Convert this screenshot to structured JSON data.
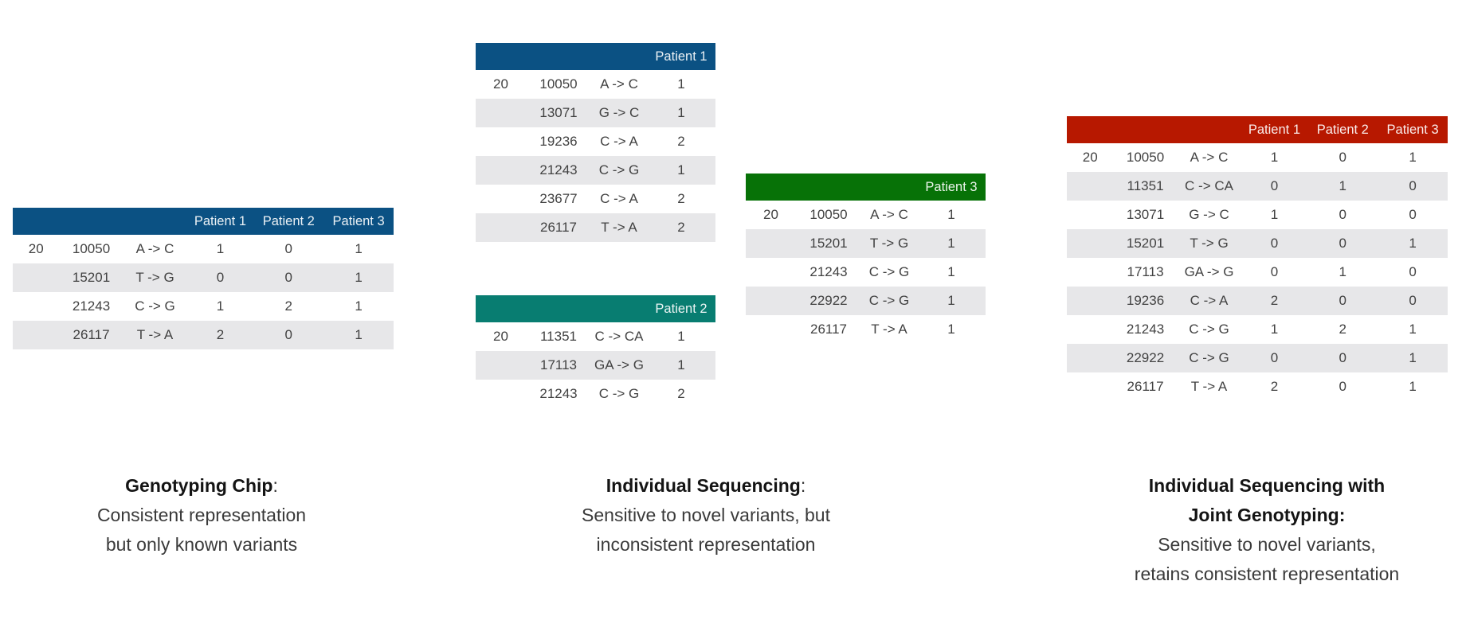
{
  "figure": {
    "tables": [
      {
        "name": "genotyping-chip-table",
        "header_color": "#0b5183",
        "headers": [
          "",
          "",
          "",
          "Patient 1",
          "Patient 2",
          "Patient 3"
        ],
        "rows": [
          [
            "20",
            "10050",
            "A -> C",
            "1",
            "0",
            "1"
          ],
          [
            "",
            "15201",
            "T -> G",
            "0",
            "0",
            "1"
          ],
          [
            "",
            "21243",
            "C -> G",
            "1",
            "2",
            "1"
          ],
          [
            "",
            "26117",
            "T -> A",
            "2",
            "0",
            "1"
          ]
        ]
      },
      {
        "name": "patient-1-sequencing-table",
        "header_color": "#0b5183",
        "headers": [
          "",
          "",
          "",
          "Patient 1"
        ],
        "rows": [
          [
            "20",
            "10050",
            "A -> C",
            "1"
          ],
          [
            "",
            "13071",
            "G -> C",
            "1"
          ],
          [
            "",
            "19236",
            "C -> A",
            "2"
          ],
          [
            "",
            "21243",
            "C -> G",
            "1"
          ],
          [
            "",
            "23677",
            "C -> A",
            "2"
          ],
          [
            "",
            "26117",
            "T -> A",
            "2"
          ]
        ]
      },
      {
        "name": "patient-2-sequencing-table",
        "header_color": "#087d71",
        "headers": [
          "",
          "",
          "",
          "Patient 2"
        ],
        "rows": [
          [
            "20",
            "11351",
            "C -> CA",
            "1"
          ],
          [
            "",
            "17113",
            "GA -> G",
            "1"
          ],
          [
            "",
            "21243",
            "C -> G",
            "2"
          ]
        ]
      },
      {
        "name": "patient-3-sequencing-table",
        "header_color": "#077207",
        "headers": [
          "",
          "",
          "",
          "Patient 3"
        ],
        "rows": [
          [
            "20",
            "10050",
            "A -> C",
            "1"
          ],
          [
            "",
            "15201",
            "T -> G",
            "1"
          ],
          [
            "",
            "21243",
            "C -> G",
            "1"
          ],
          [
            "",
            "22922",
            "C -> G",
            "1"
          ],
          [
            "",
            "26117",
            "T -> A",
            "1"
          ]
        ]
      },
      {
        "name": "joint-genotyping-table",
        "header_color": "#b71800",
        "headers": [
          "",
          "",
          "",
          "Patient 1",
          "Patient 2",
          "Patient 3"
        ],
        "rows": [
          [
            "20",
            "10050",
            "A -> C",
            "1",
            "0",
            "1"
          ],
          [
            "",
            "11351",
            "C -> CA",
            "0",
            "1",
            "0"
          ],
          [
            "",
            "13071",
            "G -> C",
            "1",
            "0",
            "0"
          ],
          [
            "",
            "15201",
            "T -> G",
            "0",
            "0",
            "1"
          ],
          [
            "",
            "17113",
            "GA -> G",
            "0",
            "1",
            "0"
          ],
          [
            "",
            "19236",
            "C -> A",
            "2",
            "0",
            "0"
          ],
          [
            "",
            "21243",
            "C -> G",
            "1",
            "2",
            "1"
          ],
          [
            "",
            "22922",
            "C -> G",
            "0",
            "0",
            "1"
          ],
          [
            "",
            "26117",
            "T -> A",
            "2",
            "0",
            "1"
          ]
        ]
      }
    ],
    "captions": [
      {
        "title_bold": "Genotyping Chip",
        "title_tail": ":",
        "lines": [
          "Consistent representation",
          "but only known variants"
        ]
      },
      {
        "title_bold": "Individual Sequencing",
        "title_tail": ":",
        "lines": [
          "Sensitive to novel variants, but",
          "inconsistent representation"
        ]
      },
      {
        "title_bold": "Individual Sequencing with",
        "title_tail": "",
        "title2_bold": "Joint Genotyping:",
        "lines": [
          "Sensitive to novel variants,",
          "retains consistent representation"
        ]
      }
    ],
    "colors": {
      "blue_header": "#0b5183",
      "teal_header": "#087d71",
      "green_header": "#077207",
      "red_header": "#b71800",
      "row_stripe": "#e7e7e9",
      "body_text": "#424242"
    }
  }
}
